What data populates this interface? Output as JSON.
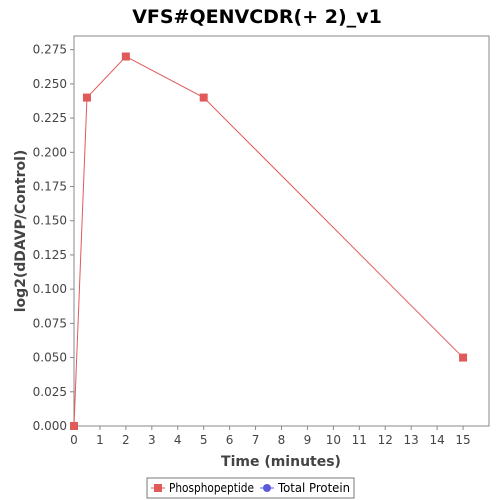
{
  "chart_data": {
    "type": "line",
    "title": "VFS#QENVCDR(+ 2)_v1",
    "xlabel": "Time (minutes)",
    "ylabel": "log2(dDAVP/Control)",
    "xlim": [
      0,
      16
    ],
    "ylim": [
      0,
      0.285
    ],
    "x_ticks": [
      0,
      1,
      2,
      3,
      4,
      5,
      6,
      7,
      8,
      9,
      10,
      11,
      12,
      13,
      14,
      15
    ],
    "y_ticks": [
      0.0,
      0.025,
      0.05,
      0.075,
      0.1,
      0.125,
      0.15,
      0.175,
      0.2,
      0.225,
      0.25,
      0.275
    ],
    "y_tick_labels": [
      "0.000",
      "0.025",
      "0.050",
      "0.075",
      "0.100",
      "0.125",
      "0.150",
      "0.175",
      "0.200",
      "0.225",
      "0.250",
      "0.275"
    ],
    "grid": false,
    "legend_position": "bottom",
    "series": [
      {
        "name": "Phosphopeptide",
        "color": "#e05a5a",
        "marker": "square",
        "x": [
          0,
          0.5,
          2,
          5,
          15
        ],
        "y": [
          0.0,
          0.24,
          0.27,
          0.24,
          0.05
        ]
      },
      {
        "name": "Total Protein",
        "color": "#5a5ae0",
        "marker": "circle",
        "x": [],
        "y": []
      }
    ]
  }
}
